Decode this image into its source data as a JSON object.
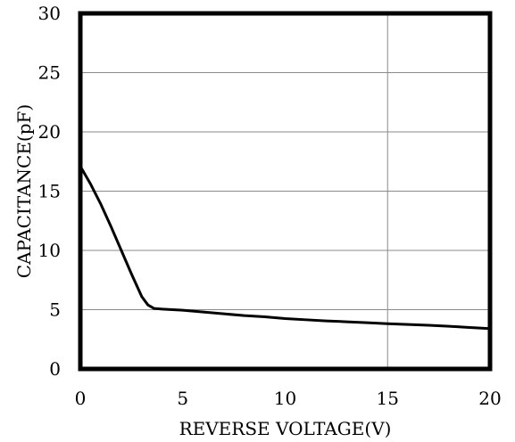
{
  "chart_data": {
    "type": "line",
    "title": "",
    "xlabel": "REVERSE VOLTAGE(V)",
    "ylabel": "CAPACITANCE(pF)",
    "xlim": [
      0,
      20
    ],
    "ylim": [
      0,
      30
    ],
    "xticks": [
      "0",
      "5",
      "10",
      "15",
      "20"
    ],
    "yticks": [
      "0",
      "5",
      "10",
      "15",
      "20",
      "25",
      "30"
    ],
    "grid": {
      "horizontal": true,
      "vertical_x": [
        15
      ]
    },
    "series": [
      {
        "x": [
          0,
          0.5,
          1,
          1.5,
          2,
          2.5,
          3,
          3.3,
          3.6,
          4,
          5,
          6,
          7,
          8,
          9,
          10,
          11,
          12,
          13,
          14,
          15,
          16,
          17,
          18,
          19,
          20
        ],
        "y": [
          17.1,
          15.6,
          13.9,
          12.0,
          10.0,
          8.0,
          6.1,
          5.4,
          5.1,
          5.05,
          4.95,
          4.8,
          4.65,
          4.5,
          4.4,
          4.25,
          4.15,
          4.05,
          3.98,
          3.9,
          3.82,
          3.75,
          3.68,
          3.6,
          3.5,
          3.4
        ],
        "color": "#000000"
      }
    ]
  }
}
